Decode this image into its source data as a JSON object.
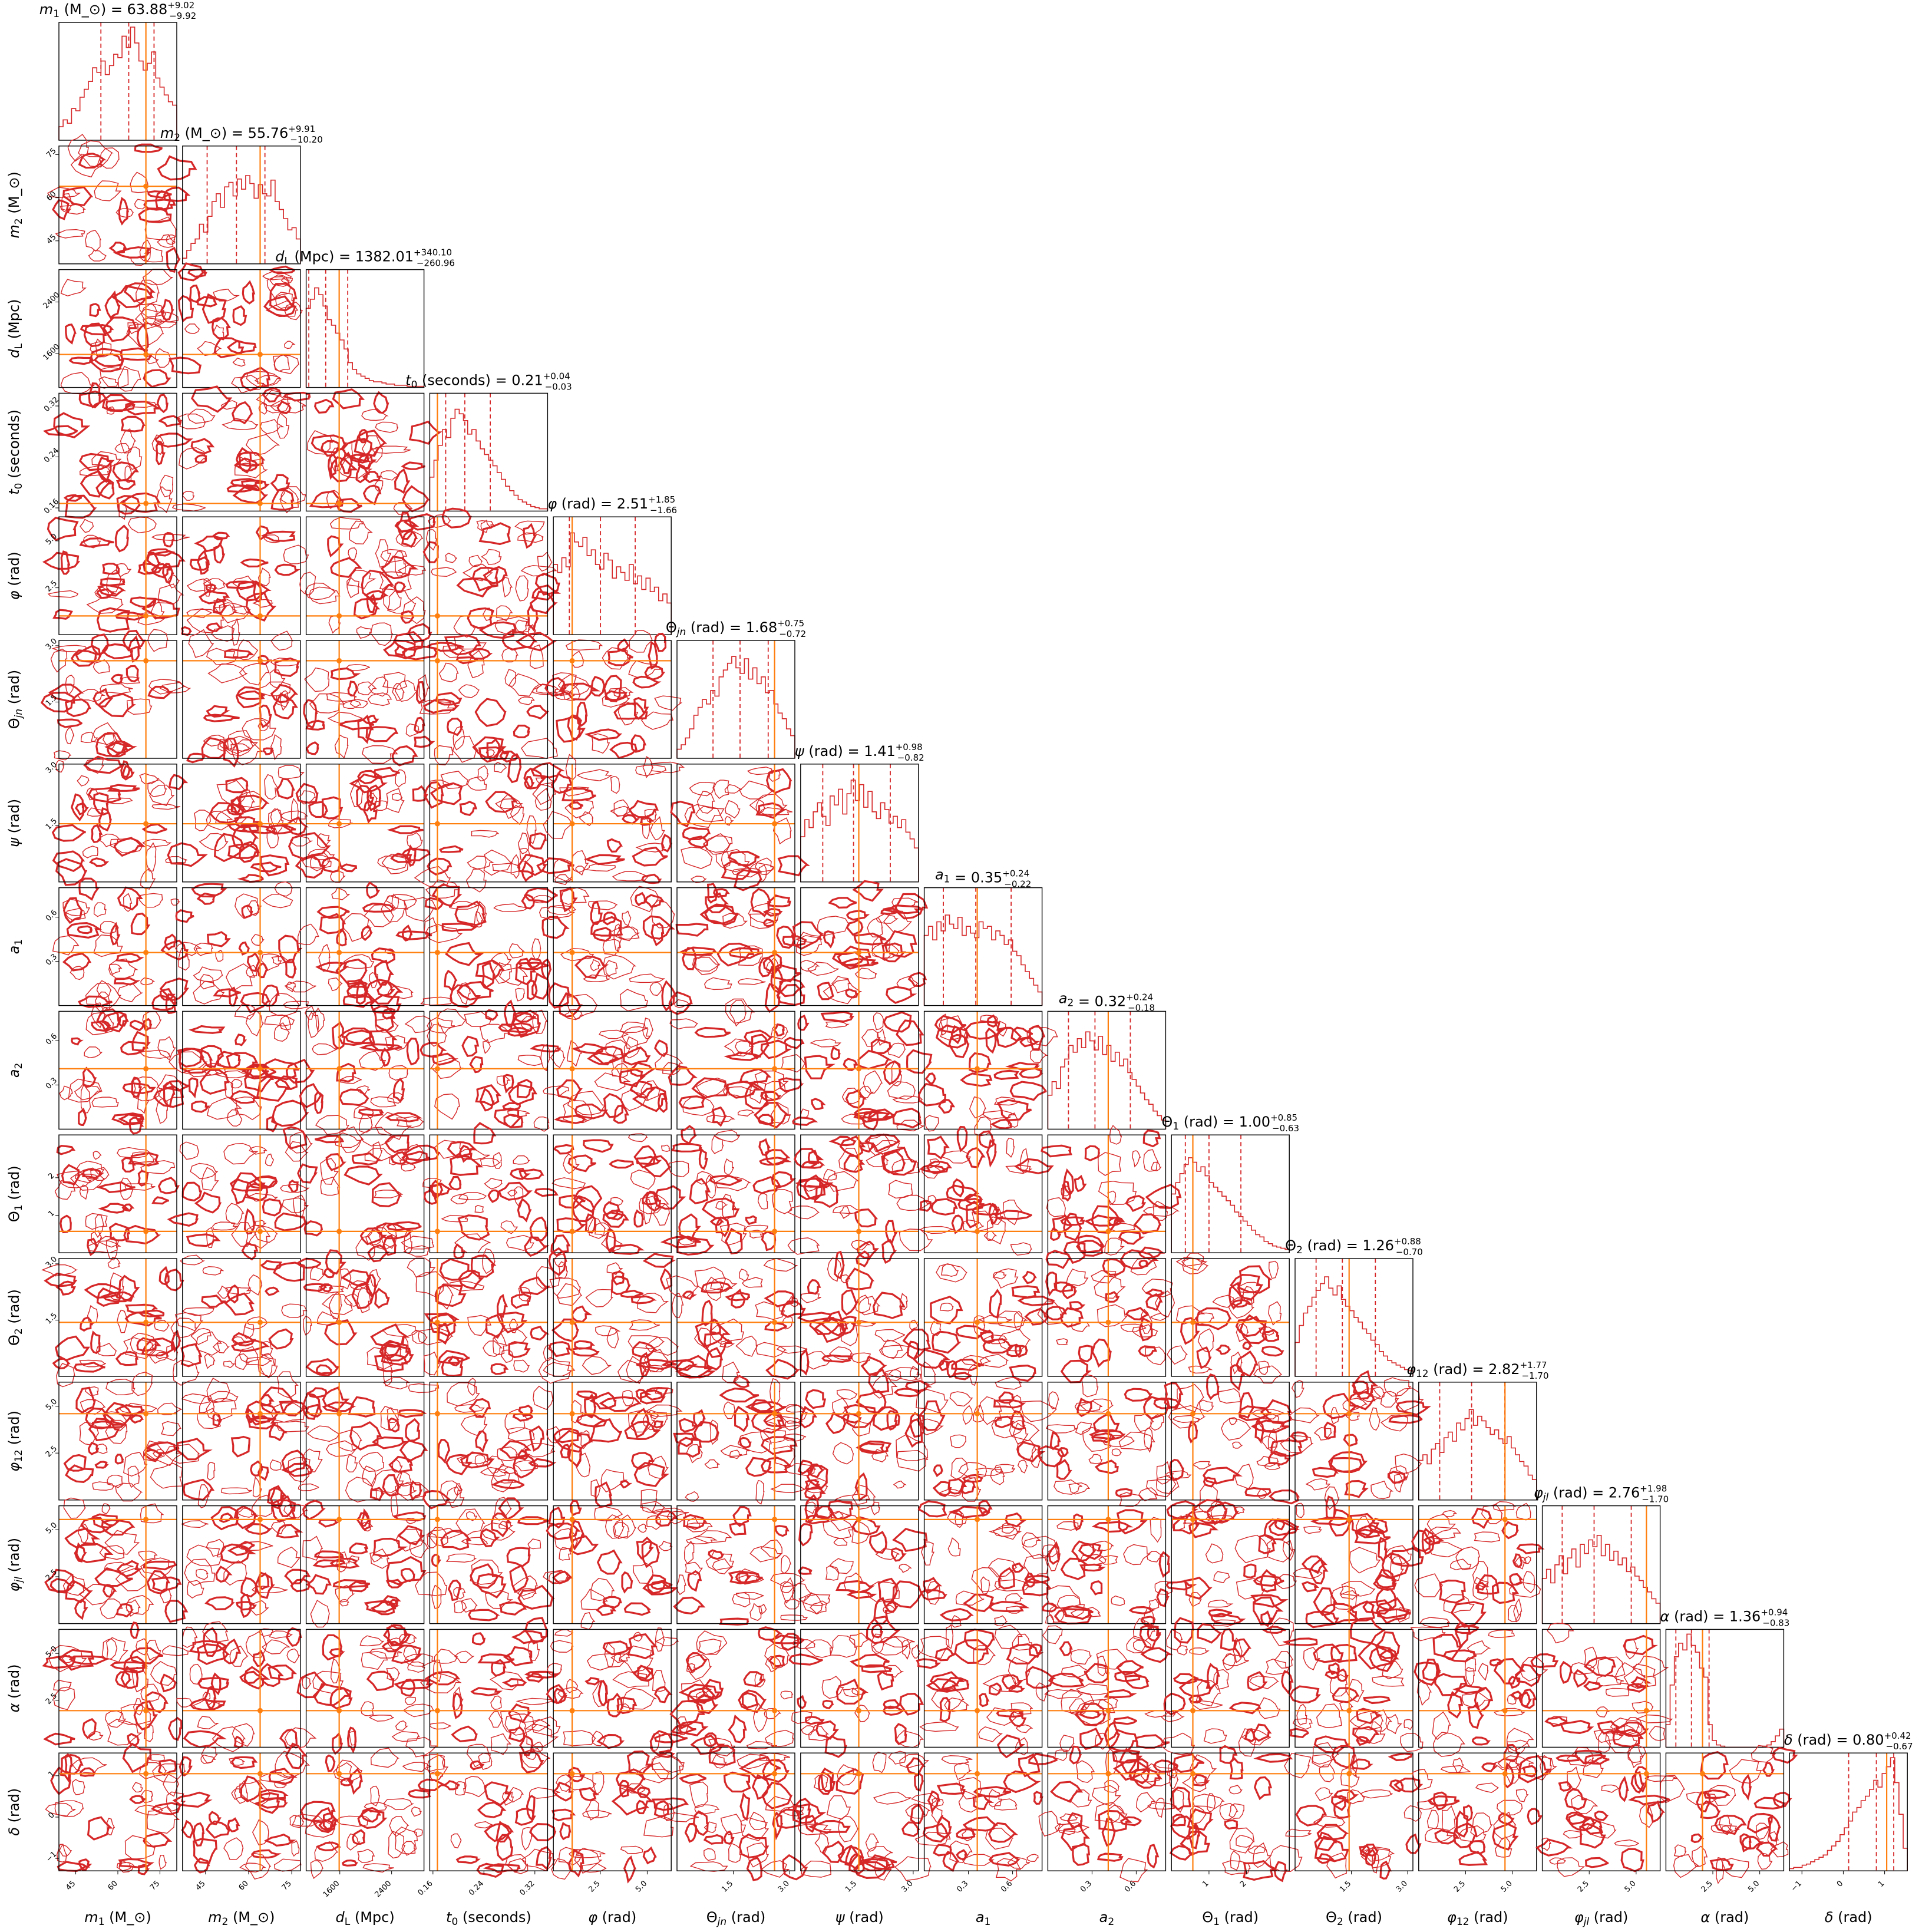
{
  "chart_data": {
    "type": "corner",
    "colors": {
      "contour": "#d62728",
      "truth": "#ff7f0e",
      "quantile": "#d62728",
      "axes": "#000000"
    },
    "params": [
      {
        "name": "m1",
        "label": "m_1 (M_⊙)",
        "title": {
          "lab": "m_1 (M_⊙)",
          "median": "63.88",
          "plus": "+9.02",
          "minus": "−9.92"
        },
        "range": [
          39,
          81
        ],
        "truth": 70,
        "median": 63.88,
        "qlo": 53.96,
        "qhi": 72.9,
        "ticks": [
          {
            "v": 45,
            "t": "45"
          },
          {
            "v": 60,
            "t": "60"
          },
          {
            "v": 75,
            "t": "75"
          }
        ],
        "hist": [
          0.12,
          0.18,
          0.15,
          0.28,
          0.26,
          0.38,
          0.45,
          0.52,
          0.64,
          0.6,
          0.7,
          0.58,
          0.66,
          0.76,
          0.73,
          0.92,
          0.82,
          1.0,
          0.86,
          0.7,
          0.62,
          0.68,
          0.78,
          0.55,
          0.47,
          0.4,
          0.34,
          0.31
        ]
      },
      {
        "name": "m2",
        "label": "m_2 (M_⊙)",
        "title": {
          "lab": "m_2 (M_⊙)",
          "median": "55.76",
          "plus": "+9.91",
          "minus": "−10.20"
        },
        "range": [
          37,
          78
        ],
        "truth": 64,
        "median": 55.76,
        "qlo": 45.56,
        "qhi": 65.67,
        "ticks": [
          {
            "v": 45,
            "t": "45"
          },
          {
            "v": 60,
            "t": "60"
          },
          {
            "v": 75,
            "t": "75"
          }
        ],
        "hist": [
          0.05,
          0.12,
          0.18,
          0.22,
          0.35,
          0.28,
          0.42,
          0.55,
          0.62,
          0.5,
          0.68,
          0.72,
          0.6,
          0.75,
          0.66,
          0.78,
          0.71,
          0.58,
          0.7,
          0.62,
          0.6,
          0.74,
          0.55,
          0.48,
          0.4,
          0.3,
          0.32,
          0.22
        ]
      },
      {
        "name": "dL",
        "label": "d_L (Mpc)",
        "title": {
          "lab": "d_L (Mpc)",
          "median": "1382.01",
          "plus": "+340.10",
          "minus": "−260.96"
        },
        "range": [
          1080,
          2900
        ],
        "truth": 1590,
        "median": 1382.01,
        "qlo": 1121.05,
        "qhi": 1722.11,
        "ticks": [
          {
            "v": 1600,
            "t": "1600"
          },
          {
            "v": 2400,
            "t": "2400"
          }
        ],
        "hist": [
          0.7,
          0.78,
          0.88,
          0.82,
          0.72,
          0.6,
          0.55,
          0.48,
          0.42,
          0.34,
          0.22,
          0.16,
          0.12,
          0.1,
          0.08,
          0.06,
          0.05,
          0.05,
          0.04,
          0.03,
          0.03,
          0.02,
          0.02,
          0.02,
          0.01,
          0.01,
          0.01,
          0.01
        ]
      },
      {
        "name": "t0",
        "label": "t_0 (seconds)",
        "title": {
          "lab": "t_0 (seconds)",
          "median": "0.21",
          "plus": "+0.04",
          "minus": "−0.03"
        },
        "range": [
          0.155,
          0.34
        ],
        "truth": 0.167,
        "median": 0.21,
        "qlo": 0.18,
        "qhi": 0.25,
        "ticks": [
          {
            "v": 0.16,
            "t": "0.16"
          },
          {
            "v": 0.24,
            "t": "0.24"
          },
          {
            "v": 0.32,
            "t": "0.32"
          }
        ],
        "hist": [
          0.3,
          0.45,
          0.58,
          0.72,
          0.65,
          0.82,
          0.9,
          0.86,
          0.8,
          0.68,
          0.72,
          0.62,
          0.55,
          0.5,
          0.45,
          0.4,
          0.34,
          0.28,
          0.22,
          0.18,
          0.14,
          0.1,
          0.08,
          0.06,
          0.04,
          0.03,
          0.02,
          0.02
        ]
      },
      {
        "name": "phi",
        "label": "φ (rad)",
        "title": {
          "lab": "φ (rad)",
          "median": "2.51",
          "plus": "+1.85",
          "minus": "−1.66"
        },
        "range": [
          0,
          6.28
        ],
        "truth": 1.0,
        "median": 2.51,
        "qlo": 0.85,
        "qhi": 4.36,
        "ticks": [
          {
            "v": 2.5,
            "t": "2.5"
          },
          {
            "v": 5.0,
            "t": "5.0"
          }
        ],
        "hist": [
          0.62,
          0.55,
          0.68,
          0.6,
          0.9,
          0.82,
          0.78,
          0.86,
          0.7,
          0.75,
          0.62,
          0.58,
          0.72,
          0.66,
          0.5,
          0.6,
          0.55,
          0.48,
          0.62,
          0.45,
          0.52,
          0.4,
          0.5,
          0.38,
          0.42,
          0.3,
          0.36,
          0.28
        ]
      },
      {
        "name": "thetajn",
        "label": "Θ_jn (rad)",
        "title": {
          "lab": "Θ_jn (rad)",
          "median": "1.68",
          "plus": "+0.75",
          "minus": "−0.72"
        },
        "range": [
          0,
          3.14
        ],
        "truth": 2.6,
        "median": 1.68,
        "qlo": 0.96,
        "qhi": 2.43,
        "ticks": [
          {
            "v": 1.5,
            "t": "1.5"
          },
          {
            "v": 3.0,
            "t": "3.0"
          }
        ],
        "hist": [
          0.08,
          0.12,
          0.18,
          0.26,
          0.38,
          0.45,
          0.52,
          0.48,
          0.6,
          0.55,
          0.72,
          0.78,
          0.84,
          0.9,
          0.8,
          0.75,
          0.88,
          0.7,
          0.8,
          0.66,
          0.72,
          0.58,
          0.6,
          0.48,
          0.4,
          0.35,
          0.26,
          0.2
        ]
      },
      {
        "name": "psi",
        "label": "ψ (rad)",
        "title": {
          "lab": "ψ (rad)",
          "median": "1.41",
          "plus": "+0.98",
          "minus": "−0.82"
        },
        "range": [
          0,
          3.14
        ],
        "truth": 1.55,
        "median": 1.41,
        "qlo": 0.59,
        "qhi": 2.39,
        "ticks": [
          {
            "v": 1.5,
            "t": "1.5"
          },
          {
            "v": 3.0,
            "t": "3.0"
          }
        ],
        "hist": [
          0.4,
          0.55,
          0.48,
          0.62,
          0.7,
          0.58,
          0.5,
          0.76,
          0.68,
          0.82,
          0.6,
          0.78,
          0.9,
          0.72,
          0.86,
          0.66,
          0.8,
          0.62,
          0.56,
          0.7,
          0.64,
          0.52,
          0.58,
          0.48,
          0.55,
          0.44,
          0.38,
          0.3
        ]
      },
      {
        "name": "a1",
        "label": "a_1",
        "title": {
          "lab": "a_1",
          "median": "0.35",
          "plus": "+0.24",
          "minus": "−0.22"
        },
        "range": [
          0,
          0.8
        ],
        "truth": 0.36,
        "median": 0.35,
        "qlo": 0.13,
        "qhi": 0.59,
        "ticks": [
          {
            "v": 0.3,
            "t": "0.3"
          },
          {
            "v": 0.6,
            "t": "0.6"
          }
        ],
        "hist": [
          0.62,
          0.7,
          0.58,
          0.74,
          0.66,
          0.8,
          0.72,
          0.68,
          0.78,
          0.62,
          0.7,
          0.64,
          0.6,
          0.74,
          0.68,
          0.7,
          0.58,
          0.66,
          0.62,
          0.54,
          0.58,
          0.48,
          0.44,
          0.36,
          0.3,
          0.24,
          0.18,
          0.12
        ]
      },
      {
        "name": "a2",
        "label": "a_2",
        "title": {
          "lab": "a_2",
          "median": "0.32",
          "plus": "+0.24",
          "minus": "−0.18"
        },
        "range": [
          0,
          0.8
        ],
        "truth": 0.41,
        "median": 0.32,
        "qlo": 0.14,
        "qhi": 0.56,
        "ticks": [
          {
            "v": 0.3,
            "t": "0.3"
          },
          {
            "v": 0.6,
            "t": "0.6"
          }
        ],
        "hist": [
          0.3,
          0.42,
          0.36,
          0.55,
          0.62,
          0.74,
          0.68,
          0.8,
          0.72,
          0.86,
          0.78,
          0.7,
          0.82,
          0.66,
          0.74,
          0.6,
          0.68,
          0.56,
          0.62,
          0.5,
          0.44,
          0.38,
          0.32,
          0.26,
          0.22,
          0.16,
          0.12,
          0.08
        ]
      },
      {
        "name": "theta1",
        "label": "Θ_1 (rad)",
        "title": {
          "lab": "Θ_1 (rad)",
          "median": "1.00",
          "plus": "+0.85",
          "minus": "−0.63"
        },
        "range": [
          0,
          3.14
        ],
        "truth": 0.57,
        "median": 1.0,
        "qlo": 0.37,
        "qhi": 1.85,
        "ticks": [
          {
            "v": 1,
            "t": "1"
          },
          {
            "v": 2,
            "t": "2"
          }
        ],
        "hist": [
          0.52,
          0.62,
          0.7,
          0.78,
          0.84,
          0.8,
          0.72,
          0.76,
          0.68,
          0.62,
          0.58,
          0.54,
          0.5,
          0.46,
          0.42,
          0.36,
          0.32,
          0.28,
          0.24,
          0.2,
          0.16,
          0.14,
          0.1,
          0.08,
          0.06,
          0.05,
          0.04,
          0.03
        ]
      },
      {
        "name": "theta2",
        "label": "Θ_2 (rad)",
        "title": {
          "lab": "Θ_2 (rad)",
          "median": "1.26",
          "plus": "+0.88",
          "minus": "−0.70"
        },
        "range": [
          0,
          3.14
        ],
        "truth": 1.44,
        "median": 1.26,
        "qlo": 0.56,
        "qhi": 2.14,
        "ticks": [
          {
            "v": 1.5,
            "t": "1.5"
          },
          {
            "v": 3.0,
            "t": "3.0"
          }
        ],
        "hist": [
          0.3,
          0.45,
          0.56,
          0.62,
          0.7,
          0.76,
          0.82,
          0.88,
          0.78,
          0.72,
          0.8,
          0.68,
          0.62,
          0.58,
          0.52,
          0.48,
          0.42,
          0.38,
          0.32,
          0.28,
          0.22,
          0.18,
          0.14,
          0.12,
          0.1,
          0.08,
          0.06,
          0.05
        ]
      },
      {
        "name": "phi12",
        "label": "φ_12 (rad)",
        "title": {
          "lab": "φ_12 (rad)",
          "median": "2.82",
          "plus": "+1.77",
          "minus": "−1.70"
        },
        "range": [
          0,
          6.28
        ],
        "truth": 4.6,
        "median": 2.82,
        "qlo": 1.12,
        "qhi": 4.59,
        "ticks": [
          {
            "v": 2.5,
            "t": "2.5"
          },
          {
            "v": 5.0,
            "t": "5.0"
          }
        ],
        "hist": [
          0.35,
          0.4,
          0.32,
          0.45,
          0.5,
          0.42,
          0.55,
          0.6,
          0.52,
          0.68,
          0.62,
          0.72,
          0.8,
          0.66,
          0.74,
          0.7,
          0.64,
          0.58,
          0.62,
          0.54,
          0.5,
          0.56,
          0.46,
          0.4,
          0.34,
          0.3,
          0.22,
          0.18
        ]
      },
      {
        "name": "phijl",
        "label": "φ_jl (rad)",
        "title": {
          "lab": "φ_jl (rad)",
          "median": "2.76",
          "plus": "+1.98",
          "minus": "−1.70"
        },
        "range": [
          0,
          6.28
        ],
        "truth": 5.55,
        "median": 2.76,
        "qlo": 1.06,
        "qhi": 4.74,
        "ticks": [
          {
            "v": 2.5,
            "t": "2.5"
          },
          {
            "v": 5.0,
            "t": "5.0"
          }
        ],
        "hist": [
          0.4,
          0.48,
          0.36,
          0.52,
          0.6,
          0.44,
          0.58,
          0.66,
          0.5,
          0.7,
          0.62,
          0.74,
          0.68,
          0.78,
          0.6,
          0.7,
          0.56,
          0.64,
          0.52,
          0.58,
          0.46,
          0.5,
          0.42,
          0.38,
          0.32,
          0.28,
          0.22,
          0.18
        ]
      },
      {
        "name": "alpha",
        "label": "α (rad)",
        "title": {
          "lab": "α (rad)",
          "median": "1.36",
          "plus": "+0.94",
          "minus": "−0.83"
        },
        "range": [
          0,
          6.28
        ],
        "truth": 1.95,
        "median": 1.36,
        "qlo": 0.53,
        "qhi": 2.3,
        "ticks": [
          {
            "v": 2.5,
            "t": "2.5"
          },
          {
            "v": 5.0,
            "t": "5.0"
          }
        ],
        "hist": [
          0.2,
          0.55,
          0.8,
          0.92,
          0.86,
          1.0,
          0.9,
          0.84,
          0.7,
          0.62,
          0.2,
          0.06,
          0.02,
          0.01,
          0.0,
          0.0,
          0.0,
          0.0,
          0.0,
          0.0,
          0.0,
          0.0,
          0.0,
          0.01,
          0.02,
          0.05,
          0.1,
          0.16
        ]
      },
      {
        "name": "delta",
        "label": "δ (rad)",
        "title": {
          "lab": "δ (rad)",
          "median": "0.80",
          "plus": "+0.42",
          "minus": "−0.67"
        },
        "range": [
          -1.3,
          1.55
        ],
        "truth": 1.05,
        "median": 0.8,
        "qlo": 0.13,
        "qhi": 1.22,
        "ticks": [
          {
            "v": -1,
            "t": "−1"
          },
          {
            "v": 0,
            "t": "0"
          },
          {
            "v": 1,
            "t": "1"
          }
        ],
        "hist": [
          0.02,
          0.03,
          0.03,
          0.05,
          0.06,
          0.08,
          0.1,
          0.12,
          0.14,
          0.18,
          0.22,
          0.26,
          0.32,
          0.38,
          0.44,
          0.52,
          0.56,
          0.62,
          0.66,
          0.72,
          0.8,
          0.74,
          0.86,
          0.92,
          1.0,
          0.78,
          0.5,
          0.2
        ]
      }
    ]
  }
}
